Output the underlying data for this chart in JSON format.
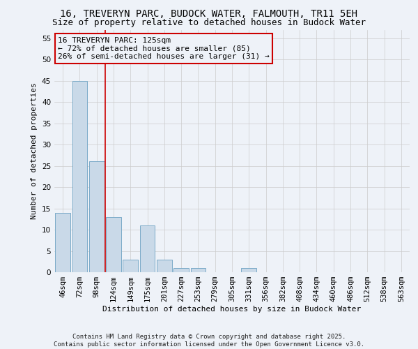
{
  "title": "16, TREVERYN PARC, BUDOCK WATER, FALMOUTH, TR11 5EH",
  "subtitle": "Size of property relative to detached houses in Budock Water",
  "xlabel": "Distribution of detached houses by size in Budock Water",
  "ylabel": "Number of detached properties",
  "categories": [
    "46sqm",
    "72sqm",
    "98sqm",
    "124sqm",
    "149sqm",
    "175sqm",
    "201sqm",
    "227sqm",
    "253sqm",
    "279sqm",
    "305sqm",
    "331sqm",
    "356sqm",
    "382sqm",
    "408sqm",
    "434sqm",
    "460sqm",
    "486sqm",
    "512sqm",
    "538sqm",
    "563sqm"
  ],
  "values": [
    14,
    45,
    26,
    13,
    3,
    11,
    3,
    1,
    1,
    0,
    0,
    1,
    0,
    0,
    0,
    0,
    0,
    0,
    0,
    0,
    0
  ],
  "bar_color": "#c9d9e8",
  "bar_edge_color": "#7aaac8",
  "grid_color": "#cccccc",
  "bg_color": "#eef2f8",
  "property_line_color": "#cc0000",
  "annotation_line1": "16 TREVERYN PARC: 125sqm",
  "annotation_line2": "← 72% of detached houses are smaller (85)",
  "annotation_line3": "26% of semi-detached houses are larger (31) →",
  "annotation_box_color": "#cc0000",
  "ylim": [
    0,
    57
  ],
  "yticks": [
    0,
    5,
    10,
    15,
    20,
    25,
    30,
    35,
    40,
    45,
    50,
    55
  ],
  "footer": "Contains HM Land Registry data © Crown copyright and database right 2025.\nContains public sector information licensed under the Open Government Licence v3.0.",
  "title_fontsize": 10,
  "subtitle_fontsize": 9,
  "axis_label_fontsize": 8,
  "tick_fontsize": 7.5,
  "annotation_fontsize": 8,
  "footer_fontsize": 6.5
}
